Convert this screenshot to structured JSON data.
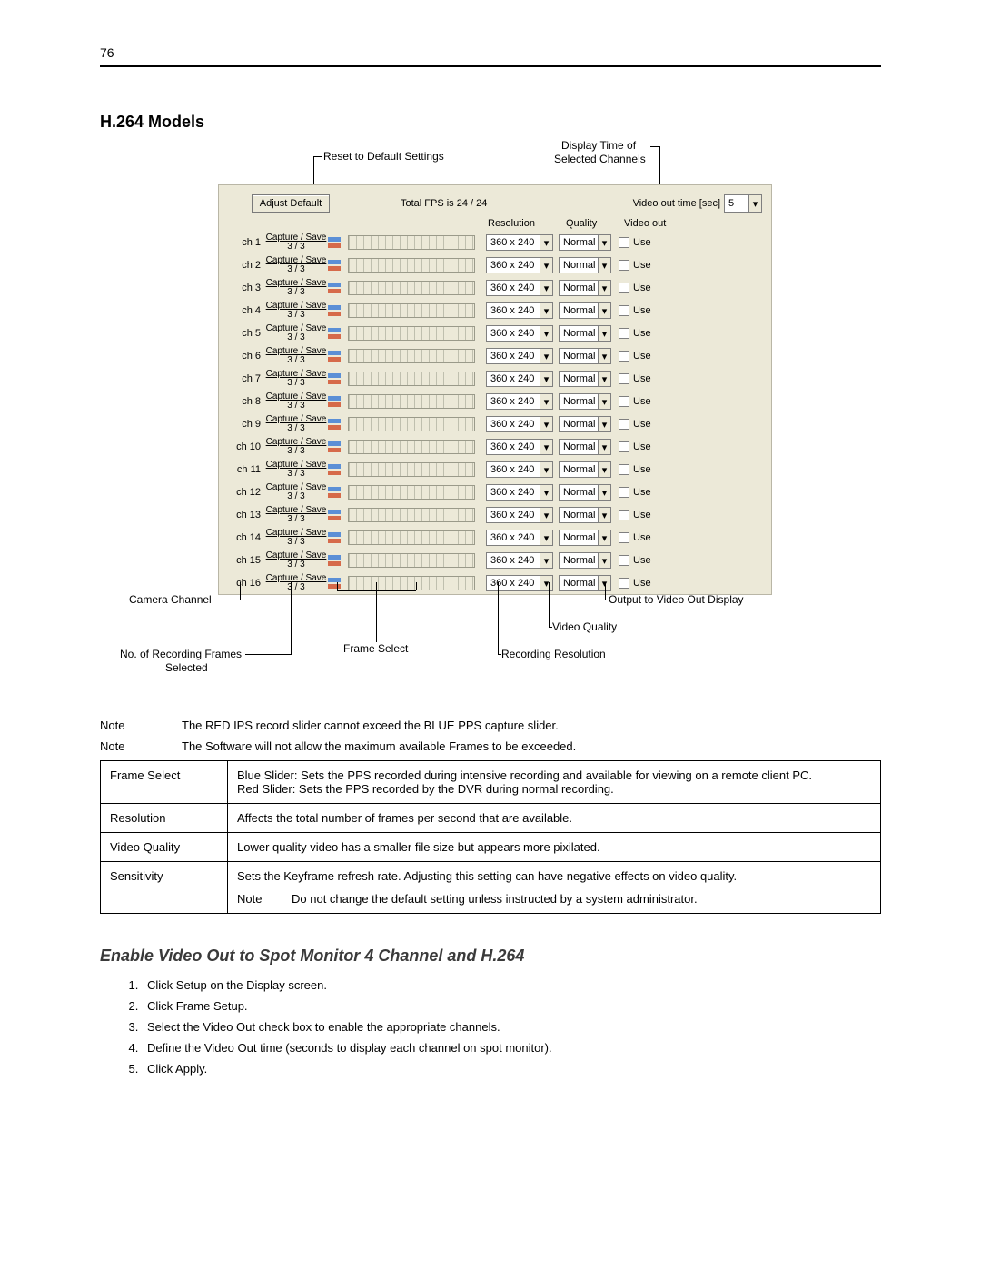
{
  "page": {
    "number": "76"
  },
  "section": {
    "title": "H.264 Models"
  },
  "callouts": {
    "reset": "Reset to Default Settings",
    "displayTime1": "Display Time of",
    "displayTime2": "Selected Channels",
    "cameraChannel": "Camera Channel",
    "outputVideo": "Output to Video Out Display",
    "videoQuality": "Video Quality",
    "frameSelect": "Frame Select",
    "recRes": "Recording Resolution",
    "recFrames1": "No. of Recording Frames",
    "recFrames2": "Selected"
  },
  "panel": {
    "adjustBtn": "Adjust Default",
    "totalFps": "Total FPS is 24 / 24",
    "videoTimeLabel": "Video out time [sec]",
    "videoTimeValue": "5",
    "colResolution": "Resolution",
    "colQuality": "Quality",
    "colVideoOut": "Video out",
    "captureSave": "Capture / Save",
    "captureSaveRatio": "3 / 3",
    "resolutionValue": "360 x 240",
    "qualityValue": "Normal",
    "useLabel": "Use",
    "channels": [
      "ch  1",
      "ch  2",
      "ch  3",
      "ch  4",
      "ch  5",
      "ch  6",
      "ch  7",
      "ch  8",
      "ch  9",
      "ch 10",
      "ch 11",
      "ch 12",
      "ch 13",
      "ch 14",
      "ch 15",
      "ch 16"
    ],
    "colors": {
      "panelBg": "#ece9d8",
      "blueBar": "#5b8fd6",
      "redBar": "#d66a4a"
    }
  },
  "notes": {
    "key": "Note",
    "line1": "The RED IPS record slider cannot exceed the BLUE PPS capture slider.",
    "line2": "The Software will not allow the maximum available Frames to be exceeded."
  },
  "descTable": {
    "rows": [
      {
        "k": "Frame Select",
        "v1": "Blue Slider: Sets the PPS recorded during intensive recording and available for viewing on a remote client PC.",
        "v2": "Red Slider: Sets the PPS recorded by the DVR during normal recording."
      },
      {
        "k": "Resolution",
        "v1": "Affects the total number of frames per second that are available."
      },
      {
        "k": "Video Quality",
        "v1": "Lower quality video has a smaller file size but appears more pixilated."
      },
      {
        "k": "Sensitivity",
        "v1": "Sets the Keyframe refresh rate. Adjusting this setting can have negative effects on video quality.",
        "noteKey": "Note",
        "noteVal": "Do not change the default setting unless instructed by a system administrator."
      }
    ]
  },
  "sub": {
    "title": "Enable Video Out to Spot Monitor 4 Channel and H.264"
  },
  "steps": [
    "Click Setup on the Display screen.",
    "Click Frame Setup.",
    "Select the Video Out check box to enable the appropriate channels.",
    "Define the Video Out time (seconds to display each channel on spot monitor).",
    "Click Apply."
  ]
}
